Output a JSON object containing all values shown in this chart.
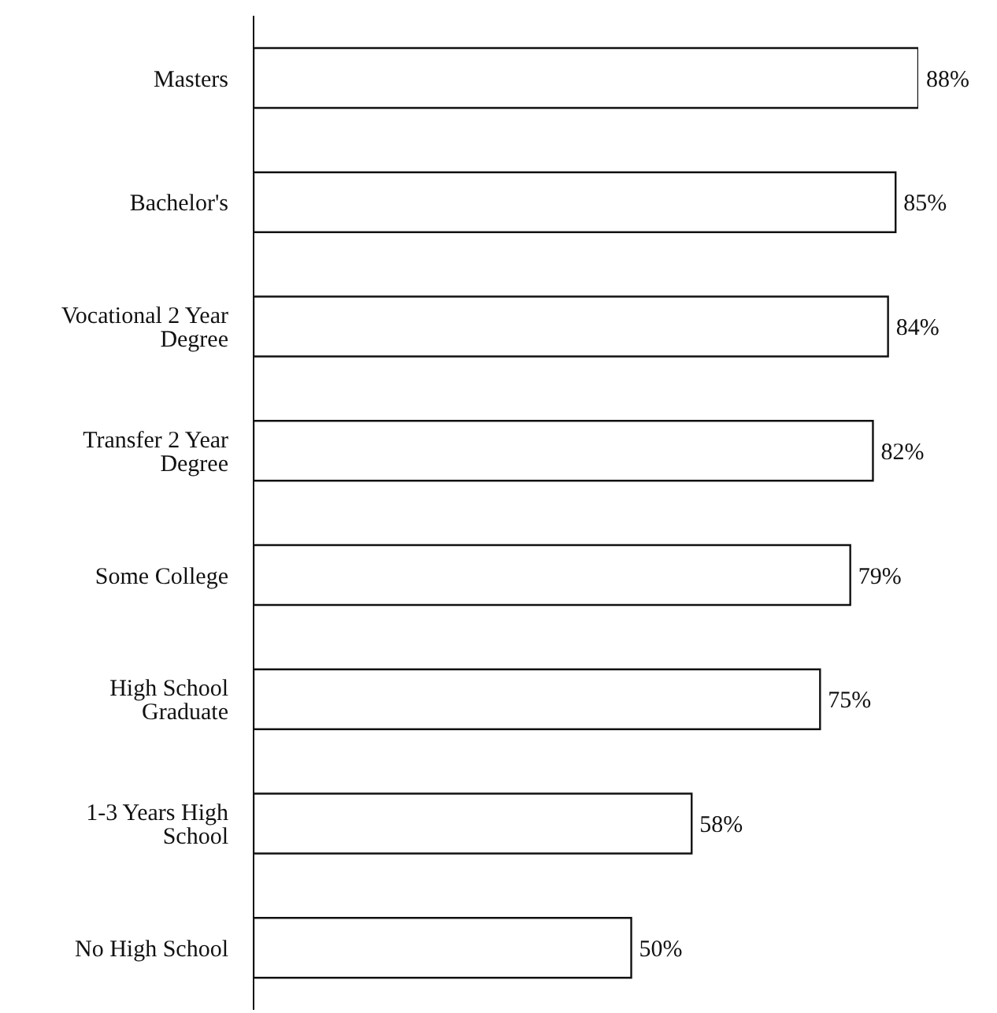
{
  "chart_data": {
    "type": "bar",
    "orientation": "horizontal",
    "categories": [
      "Masters",
      "Bachelor's",
      "Vocational 2 Year Degree",
      "Transfer 2 Year Degree",
      "Some College",
      "High School Graduate",
      "1-3 Years High School",
      "No High School"
    ],
    "values": [
      88,
      85,
      84,
      82,
      79,
      75,
      58,
      50
    ],
    "value_labels": [
      "88%",
      "85%",
      "84%",
      "82%",
      "79%",
      "75%",
      "58%",
      "50%"
    ],
    "color": "#ffffff"
  }
}
